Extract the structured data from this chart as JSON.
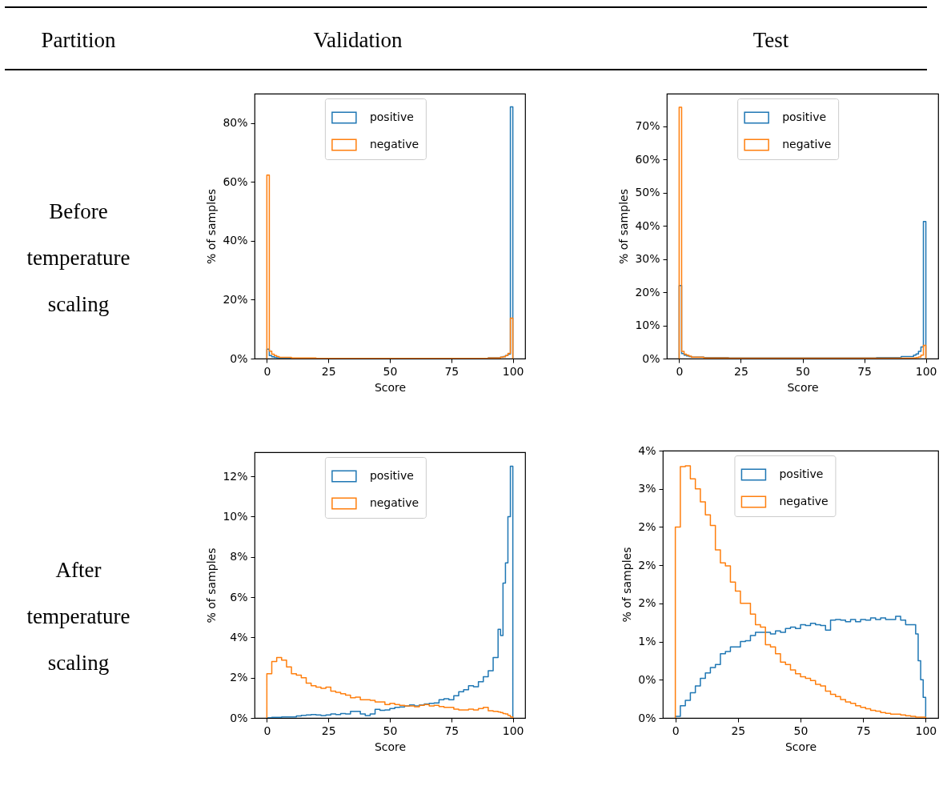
{
  "chart_data": [
    {
      "type": "other",
      "annotations": [
        "Partition",
        "Validation",
        "Test",
        "Before temperature scaling",
        "After temperature scaling"
      ]
    },
    {
      "type": "histogram",
      "xlabel": "Score",
      "ylabel": "% of samples",
      "legend": "top",
      "bins": [
        0,
        1,
        2,
        3,
        4,
        5,
        10,
        20,
        30,
        40,
        50,
        60,
        70,
        80,
        90,
        95,
        96,
        97,
        98,
        99,
        100
      ],
      "series": [
        {
          "name": "positive",
          "color": "#1f77b4",
          "values": [
            3.2,
            1.0,
            0.6,
            0.4,
            0.3,
            0.2,
            0.1,
            0.1,
            0.1,
            0.1,
            0.1,
            0.1,
            0.1,
            0.1,
            0.3,
            0.5,
            0.7,
            1.0,
            1.5,
            85.5
          ]
        },
        {
          "name": "negative",
          "color": "#ff7f0e",
          "values": [
            62.3,
            2.5,
            1.5,
            1.0,
            0.7,
            0.4,
            0.2,
            0.1,
            0.1,
            0.1,
            0.1,
            0.1,
            0.1,
            0.1,
            0.2,
            0.5,
            0.6,
            1.0,
            1.8,
            13.7
          ]
        }
      ],
      "xlim": [
        -5,
        105
      ],
      "xticks": [
        0,
        25,
        50,
        75,
        100
      ],
      "ylim": [
        0,
        90
      ],
      "yticks": [
        {
          "value": 0,
          "label": "0%"
        },
        {
          "value": 20,
          "label": "20%"
        },
        {
          "value": 40,
          "label": "40%"
        },
        {
          "value": 60,
          "label": "60%"
        },
        {
          "value": 80,
          "label": "80%"
        }
      ]
    },
    {
      "type": "histogram",
      "xlabel": "Score",
      "ylabel": "% of samples",
      "legend": "top",
      "bins": [
        0,
        1,
        2,
        3,
        4,
        5,
        10,
        20,
        30,
        40,
        50,
        60,
        70,
        80,
        90,
        95,
        96,
        97,
        98,
        99,
        100
      ],
      "series": [
        {
          "name": "positive",
          "color": "#1f77b4",
          "values": [
            22.0,
            1.5,
            1.0,
            0.8,
            0.6,
            0.4,
            0.3,
            0.2,
            0.2,
            0.2,
            0.2,
            0.2,
            0.2,
            0.3,
            0.6,
            1.0,
            1.4,
            2.2,
            3.5,
            41.3
          ]
        },
        {
          "name": "negative",
          "color": "#ff7f0e",
          "values": [
            75.7,
            2.2,
            1.3,
            1.0,
            0.7,
            0.4,
            0.2,
            0.1,
            0.1,
            0.1,
            0.1,
            0.1,
            0.1,
            0.1,
            0.15,
            0.2,
            0.3,
            0.5,
            1.0,
            4.0
          ]
        }
      ],
      "xlim": [
        -5,
        105
      ],
      "xticks": [
        0,
        25,
        50,
        75,
        100
      ],
      "ylim": [
        0,
        79.8
      ],
      "yticks": [
        {
          "value": 0,
          "label": "0%"
        },
        {
          "value": 10,
          "label": "10%"
        },
        {
          "value": 20,
          "label": "20%"
        },
        {
          "value": 30,
          "label": "30%"
        },
        {
          "value": 40,
          "label": "40%"
        },
        {
          "value": 50,
          "label": "50%"
        },
        {
          "value": 60,
          "label": "60%"
        },
        {
          "value": 70,
          "label": "70%"
        }
      ]
    },
    {
      "type": "histogram",
      "xlabel": "Score",
      "ylabel": "% of samples",
      "legend": "top",
      "bins": [
        0,
        2,
        4,
        6,
        8,
        10,
        12,
        14,
        16,
        18,
        20,
        22,
        24,
        26,
        28,
        30,
        32,
        34,
        36,
        38,
        40,
        42,
        44,
        46,
        48,
        50,
        52,
        54,
        56,
        58,
        60,
        62,
        64,
        66,
        68,
        70,
        72,
        74,
        76,
        78,
        80,
        82,
        84,
        86,
        88,
        90,
        92,
        94,
        95,
        96,
        97,
        98,
        99,
        100
      ],
      "series": [
        {
          "name": "positive",
          "color": "#1f77b4",
          "values": [
            0.01,
            0.03,
            0.03,
            0.05,
            0.05,
            0.05,
            0.1,
            0.13,
            0.15,
            0.17,
            0.15,
            0.12,
            0.15,
            0.2,
            0.17,
            0.22,
            0.2,
            0.33,
            0.33,
            0.2,
            0.12,
            0.2,
            0.43,
            0.38,
            0.4,
            0.47,
            0.53,
            0.55,
            0.6,
            0.65,
            0.6,
            0.65,
            0.7,
            0.73,
            0.75,
            0.9,
            0.95,
            0.9,
            1.1,
            1.3,
            1.4,
            1.6,
            1.55,
            1.8,
            2.05,
            2.35,
            3.0,
            4.4,
            4.1,
            6.7,
            7.7,
            10.0,
            12.5
          ]
        },
        {
          "name": "negative",
          "color": "#ff7f0e",
          "values": [
            2.2,
            2.8,
            3.0,
            2.87,
            2.53,
            2.2,
            2.13,
            2.0,
            1.73,
            1.6,
            1.53,
            1.47,
            1.53,
            1.33,
            1.27,
            1.2,
            1.13,
            1.0,
            1.03,
            0.9,
            0.9,
            0.87,
            0.8,
            0.8,
            0.67,
            0.73,
            0.67,
            0.63,
            0.6,
            0.6,
            0.56,
            0.63,
            0.67,
            0.6,
            0.63,
            0.57,
            0.53,
            0.53,
            0.44,
            0.4,
            0.4,
            0.44,
            0.4,
            0.47,
            0.53,
            0.36,
            0.33,
            0.3,
            0.27,
            0.22,
            0.2,
            0.13,
            0.05
          ]
        }
      ],
      "xlim": [
        -5,
        105
      ],
      "xticks": [
        0,
        25,
        50,
        75,
        100
      ],
      "ylim": [
        0,
        13.2
      ],
      "yticks": [
        {
          "value": 0,
          "label": "0%"
        },
        {
          "value": 2,
          "label": "2%"
        },
        {
          "value": 4,
          "label": "4%"
        },
        {
          "value": 6,
          "label": "6%"
        },
        {
          "value": 8,
          "label": "8%"
        },
        {
          "value": 10,
          "label": "10%"
        },
        {
          "value": 12,
          "label": "12%"
        }
      ]
    },
    {
      "type": "histogram",
      "xlabel": "Score",
      "ylabel": "% of samples",
      "legend": "top",
      "bins": [
        0,
        2,
        4,
        6,
        8,
        10,
        12,
        14,
        16,
        18,
        20,
        22,
        24,
        26,
        28,
        30,
        32,
        34,
        36,
        38,
        40,
        42,
        44,
        46,
        48,
        50,
        52,
        54,
        56,
        58,
        60,
        62,
        64,
        66,
        68,
        70,
        72,
        74,
        76,
        78,
        80,
        82,
        84,
        86,
        88,
        90,
        92,
        94,
        95,
        96,
        97,
        98,
        99,
        100
      ],
      "series": [
        {
          "name": "positive",
          "color": "#1f77b4",
          "values": [
            0.02,
            0.16,
            0.23,
            0.33,
            0.42,
            0.52,
            0.59,
            0.66,
            0.7,
            0.84,
            0.87,
            0.93,
            0.93,
            1.0,
            1.01,
            1.08,
            1.12,
            1.12,
            1.12,
            1.1,
            1.14,
            1.12,
            1.17,
            1.19,
            1.17,
            1.22,
            1.21,
            1.24,
            1.22,
            1.21,
            1.15,
            1.28,
            1.29,
            1.28,
            1.26,
            1.29,
            1.26,
            1.29,
            1.28,
            1.31,
            1.29,
            1.31,
            1.29,
            1.29,
            1.33,
            1.28,
            1.22,
            1.22,
            1.22,
            1.1,
            0.75,
            0.5,
            0.27
          ]
        },
        {
          "name": "negative",
          "color": "#ff7f0e",
          "values": [
            2.5,
            3.29,
            3.3,
            3.13,
            3.0,
            2.83,
            2.66,
            2.52,
            2.2,
            2.03,
            1.99,
            1.78,
            1.66,
            1.5,
            1.5,
            1.36,
            1.22,
            1.19,
            0.96,
            0.93,
            0.84,
            0.73,
            0.7,
            0.63,
            0.58,
            0.54,
            0.52,
            0.49,
            0.44,
            0.42,
            0.35,
            0.31,
            0.28,
            0.24,
            0.21,
            0.19,
            0.16,
            0.14,
            0.12,
            0.1,
            0.09,
            0.07,
            0.06,
            0.05,
            0.05,
            0.04,
            0.03,
            0.02,
            0.02,
            0.01,
            0.01,
            0.01,
            0.01
          ]
        }
      ],
      "xlim": [
        -5,
        105
      ],
      "xticks": [
        0,
        25,
        50,
        75,
        100
      ],
      "ylim": [
        0,
        3.5
      ],
      "yticks": [
        {
          "value": 0,
          "label": "0%"
        },
        {
          "value": 0.5,
          "label": "0%"
        },
        {
          "value": 1,
          "label": "1%"
        },
        {
          "value": 1.5,
          "label": "2%"
        },
        {
          "value": 2,
          "label": "2%"
        },
        {
          "value": 2.5,
          "label": "2%"
        },
        {
          "value": 3,
          "label": "3%"
        },
        {
          "value": 3.5,
          "label": "4%"
        }
      ]
    }
  ]
}
